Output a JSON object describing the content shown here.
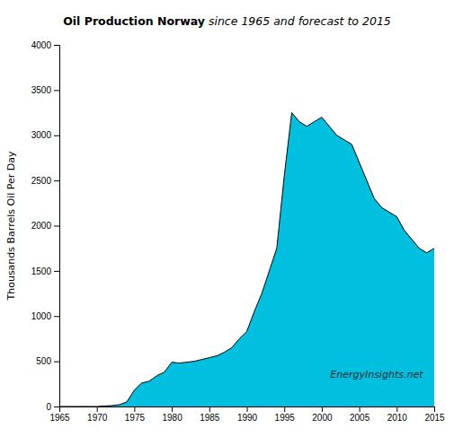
{
  "chart_data": {
    "type": "area",
    "title": "Oil Production Norway",
    "subtitle": "since 1965 and forecast to 2015",
    "y_label": "Thousands Barrels Oil Per Day",
    "annotations": [
      "EnergyInsights.net"
    ],
    "x": [
      1965,
      1966,
      1967,
      1968,
      1969,
      1970,
      1971,
      1972,
      1973,
      1974,
      1975,
      1976,
      1977,
      1978,
      1979,
      1980,
      1981,
      1982,
      1983,
      1984,
      1985,
      1986,
      1987,
      1988,
      1989,
      1990,
      1991,
      1992,
      1993,
      1994,
      1995,
      1996,
      1997,
      1998,
      1999,
      2000,
      2001,
      2002,
      2003,
      2004,
      2005,
      2006,
      2007,
      2008,
      2009,
      2010,
      2011,
      2012,
      2013,
      2014,
      2015
    ],
    "values": [
      0,
      0,
      0,
      0,
      0,
      0,
      5,
      10,
      20,
      50,
      180,
      260,
      280,
      340,
      380,
      490,
      480,
      490,
      500,
      520,
      540,
      560,
      600,
      650,
      750,
      830,
      1050,
      1250,
      1500,
      1750,
      2550,
      3250,
      3150,
      3100,
      3150,
      3200,
      3100,
      3000,
      2950,
      2900,
      2700,
      2500,
      2300,
      2200,
      2150,
      2100,
      1950,
      1850,
      1750,
      1700,
      1750
    ],
    "color": "#00BFDF",
    "xlim": [
      1965,
      2015
    ],
    "ylim": [
      0,
      4000
    ],
    "xticks": [
      1965,
      1970,
      1975,
      1980,
      1985,
      1990,
      1995,
      2000,
      2005,
      2010,
      2015
    ],
    "yticks": [
      0,
      500,
      1000,
      1500,
      2000,
      2500,
      3000,
      3500,
      4000
    ],
    "grid": false
  }
}
